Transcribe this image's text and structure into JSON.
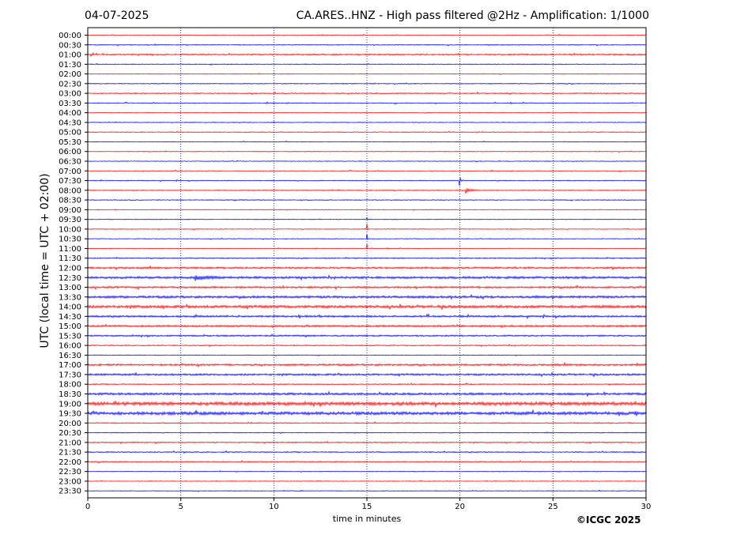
{
  "header": {
    "date": "04-07-2025",
    "title": "CA.ARES..HNZ - High pass filtered @2Hz - Amplification: 1/1000"
  },
  "footer": {
    "copyright": "©ICGC 2025"
  },
  "colors": {
    "red_trace": "#ff0000",
    "blue_trace": "#0000ff",
    "grid": "#00008b"
  },
  "chart_data": {
    "type": "line",
    "title": "CA.ARES..HNZ - High pass filtered @2Hz - Amplification: 1/1000",
    "xlabel": "time in minutes",
    "ylabel": "UTC (local time = UTC + 02:00)",
    "xlim": [
      0,
      30
    ],
    "xticks": [
      0,
      5,
      10,
      15,
      20,
      25,
      30
    ],
    "grid": "vertical dotted at x ticks",
    "rows": [
      "00:00",
      "00:30",
      "01:00",
      "01:30",
      "02:00",
      "02:30",
      "03:00",
      "03:30",
      "04:00",
      "04:30",
      "05:00",
      "05:30",
      "06:00",
      "06:30",
      "07:00",
      "07:30",
      "08:00",
      "08:30",
      "09:00",
      "09:30",
      "10:00",
      "10:30",
      "11:00",
      "11:30",
      "12:00",
      "12:30",
      "13:00",
      "13:30",
      "14:00",
      "14:30",
      "15:00",
      "15:30",
      "16:00",
      "16:30",
      "17:00",
      "17:30",
      "18:00",
      "18:30",
      "19:00",
      "19:30",
      "20:00",
      "20:30",
      "21:00",
      "21:30",
      "22:00",
      "22:30",
      "23:00",
      "23:30"
    ],
    "row_colors": "alternating red (full hours) and blue (half hours)",
    "noise_level": [
      1,
      1.2,
      2,
      1.2,
      1,
      1.2,
      1.5,
      1.2,
      1,
      1,
      1.2,
      1,
      1,
      1,
      1,
      1.2,
      1.2,
      1.2,
      1,
      1,
      1,
      1,
      1,
      1.5,
      2.5,
      3,
      2.5,
      3,
      3.5,
      2.5,
      2.5,
      2,
      1.5,
      1,
      2.5,
      2.5,
      1.5,
      3,
      4.5,
      4,
      1.5,
      1.2,
      1.5,
      1.5,
      1.5,
      1,
      1,
      1
    ],
    "events": [
      {
        "row": "07:30",
        "minute": 19.99,
        "amplitude": 12,
        "duration": 0.15
      },
      {
        "row": "08:00",
        "minute": 20.3,
        "amplitude": 9,
        "duration": 0.8
      },
      {
        "row": "09:30",
        "minute": 15.0,
        "amplitude": 10,
        "duration": 0.05
      },
      {
        "row": "10:00",
        "minute": 15.0,
        "amplitude": 16,
        "duration": 0.05
      },
      {
        "row": "10:30",
        "minute": 15.0,
        "amplitude": 16,
        "duration": 0.05
      },
      {
        "row": "11:00",
        "minute": 15.0,
        "amplitude": 16,
        "duration": 0.05
      },
      {
        "row": "11:00",
        "minute": 12.25,
        "amplitude": 4,
        "duration": 0.1
      },
      {
        "row": "12:30",
        "minute": 5.8,
        "amplitude": 9,
        "duration": 2.6
      },
      {
        "row": "14:30",
        "minute": 5.7,
        "amplitude": 4,
        "duration": 1.2
      },
      {
        "row": "14:00",
        "minute": 20.5,
        "amplitude": 4,
        "duration": 1.5
      },
      {
        "row": "13:30",
        "minute": 24.0,
        "amplitude": 4,
        "duration": 2
      },
      {
        "row": "17:00",
        "minute": 25.0,
        "amplitude": 3,
        "duration": 5
      },
      {
        "row": "18:30",
        "minute": 29.5,
        "amplitude": 4,
        "duration": 0.5
      },
      {
        "row": "19:00",
        "minute": 13.0,
        "amplitude": 4,
        "duration": 3
      }
    ]
  }
}
